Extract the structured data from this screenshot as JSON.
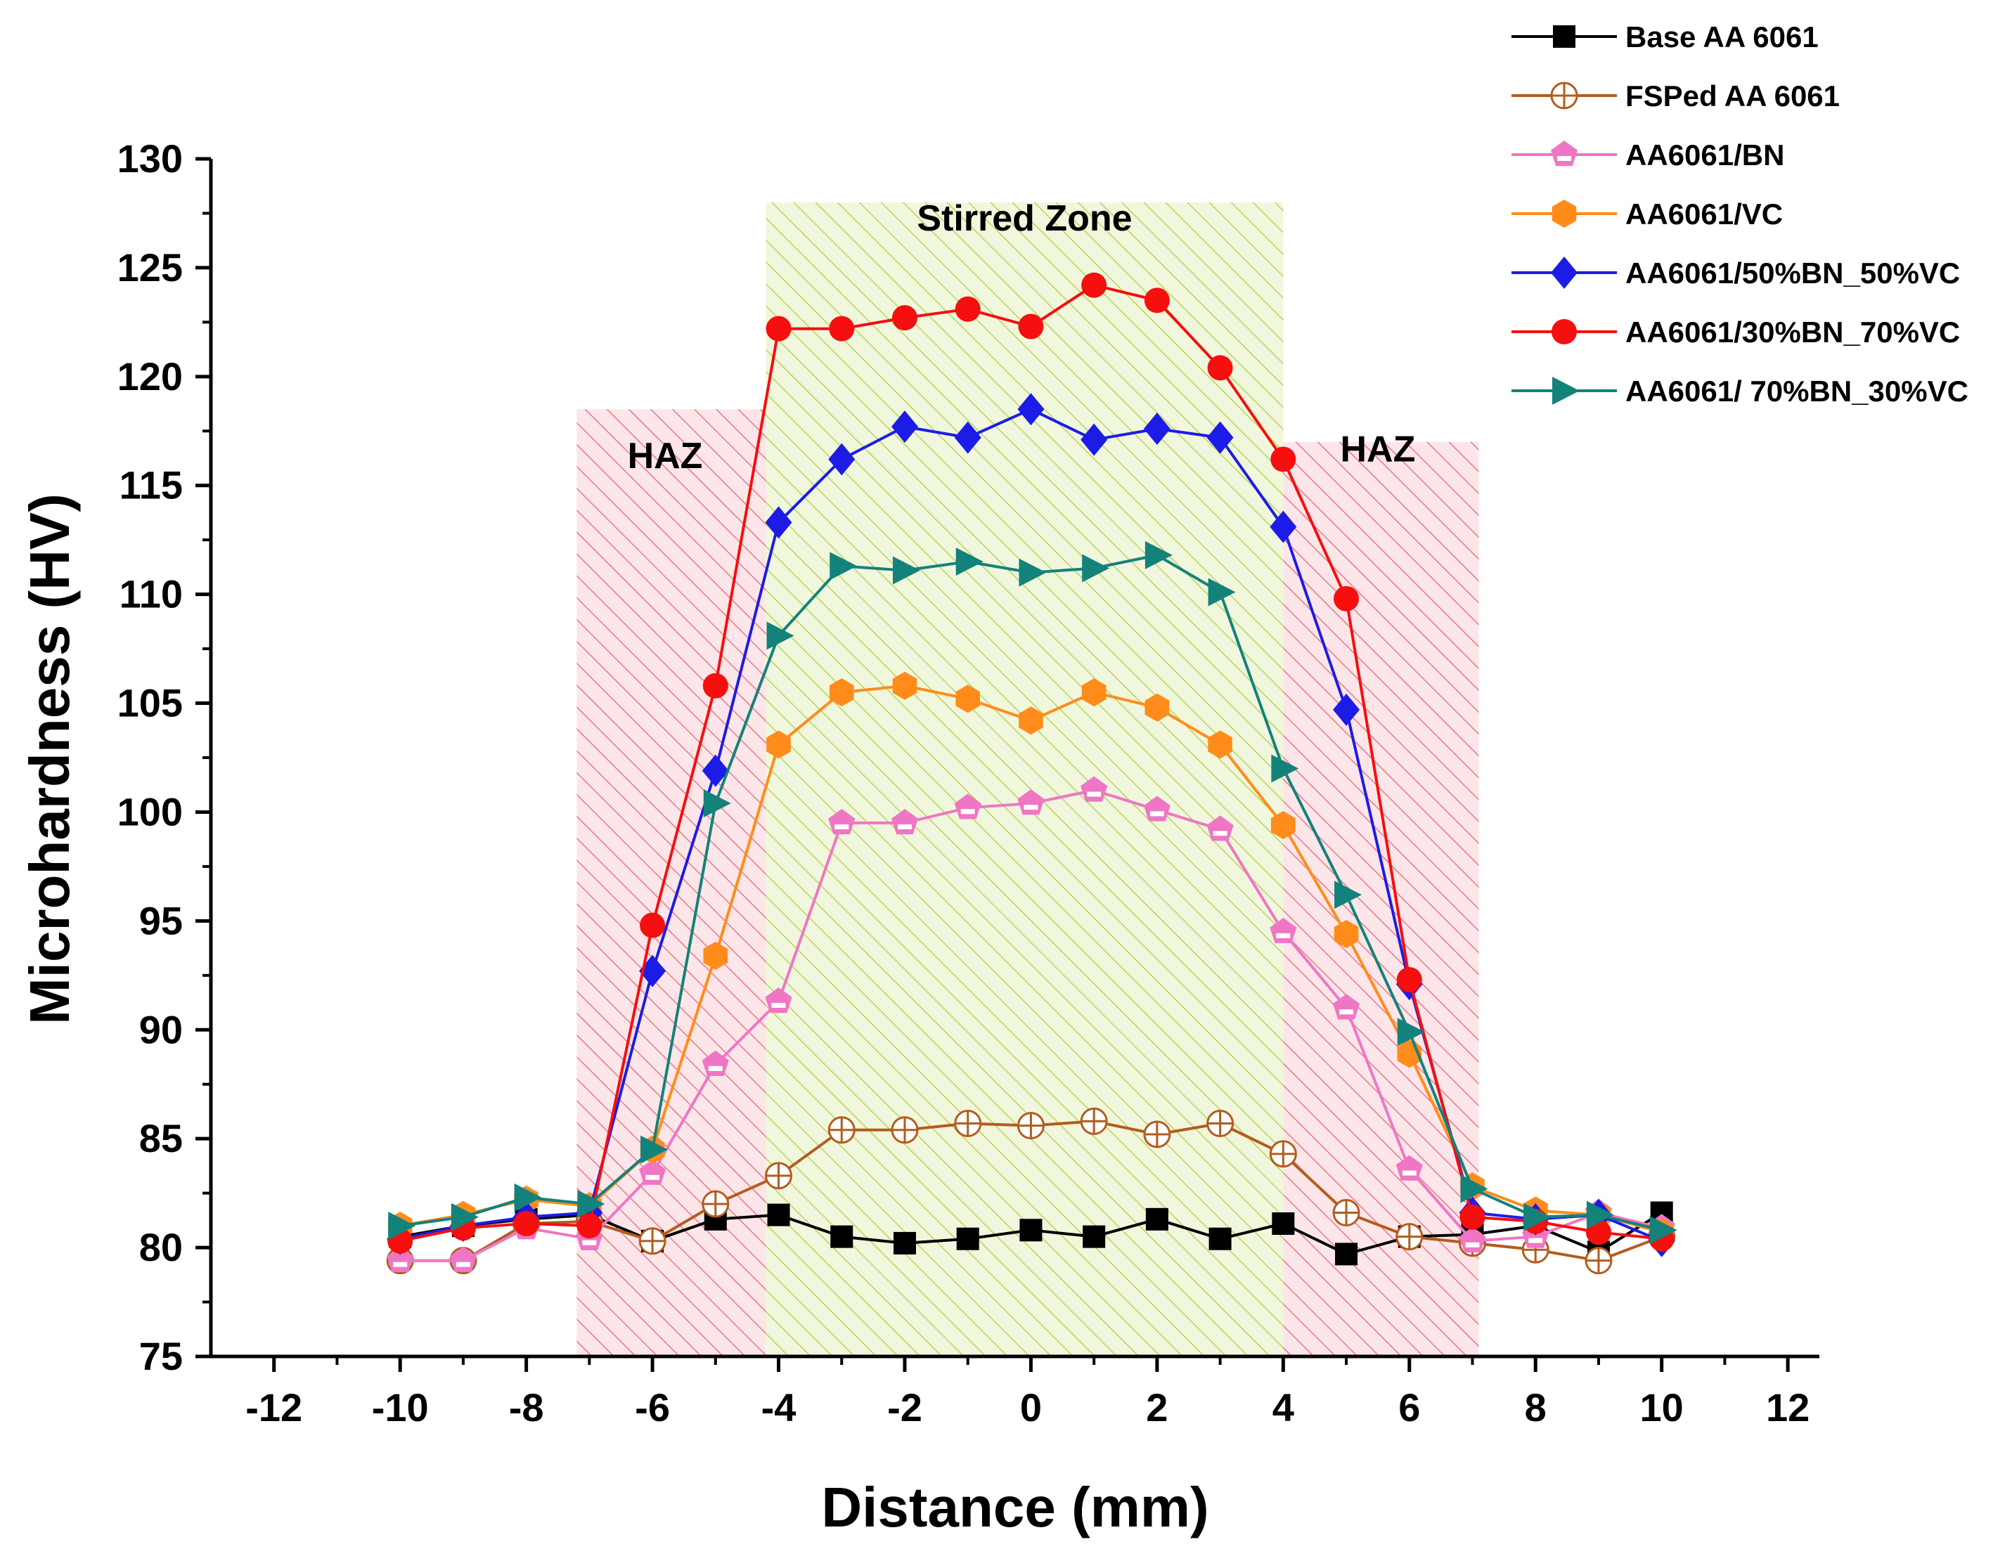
{
  "chart_data": {
    "type": "line",
    "title": "",
    "xlabel": "Distance (mm)",
    "ylabel": "Microhardness (HV)",
    "xlim": [
      -13,
      12.5
    ],
    "ylim": [
      75,
      130
    ],
    "xticks": [
      -12,
      -10,
      -8,
      -6,
      -4,
      -2,
      0,
      2,
      4,
      6,
      8,
      10,
      12
    ],
    "yticks": [
      75,
      80,
      85,
      90,
      95,
      100,
      105,
      110,
      115,
      120,
      125,
      130
    ],
    "grid": false,
    "legend_position": "top-right",
    "zones": [
      {
        "name": "haz-left",
        "label": "HAZ",
        "x_range": [
          -7.2,
          -4.2
        ],
        "y_range": [
          75,
          118.5
        ],
        "color": "#e87a87"
      },
      {
        "name": "stirred-zone",
        "label": "Stirred Zone",
        "x_range": [
          -4.2,
          4.0
        ],
        "y_range": [
          75,
          128
        ],
        "color": "#b7d45e"
      },
      {
        "name": "haz-right",
        "label": "HAZ",
        "x_range": [
          4.0,
          7.1
        ],
        "y_range": [
          75,
          117
        ],
        "color": "#e87a87"
      }
    ],
    "x": [
      -10,
      -9,
      -8,
      -7,
      -6,
      -5,
      -4,
      -3,
      -2,
      -1,
      0,
      1,
      2,
      3,
      4,
      5,
      6,
      7,
      8,
      9,
      10
    ],
    "series": [
      {
        "name": "Base AA 6061",
        "color": "#000000",
        "marker": "square",
        "values": [
          80.5,
          81.0,
          81.3,
          81.5,
          80.3,
          81.3,
          81.5,
          80.5,
          80.2,
          80.4,
          80.8,
          80.5,
          81.3,
          80.4,
          81.1,
          79.7,
          80.5,
          80.6,
          81.0,
          79.8,
          81.6
        ]
      },
      {
        "name": "FSPed AA 6061",
        "color": "#b35c1e",
        "marker": "circle-cross",
        "values": [
          79.4,
          79.4,
          81.1,
          81.2,
          80.3,
          82.0,
          83.3,
          85.4,
          85.4,
          85.7,
          85.6,
          85.8,
          85.2,
          85.7,
          84.3,
          81.6,
          80.5,
          80.2,
          79.9,
          79.4,
          80.5
        ]
      },
      {
        "name": "AA6061/BN",
        "color": "#ef76c4",
        "marker": "pentagon",
        "values": [
          79.4,
          79.4,
          80.9,
          80.4,
          83.4,
          88.4,
          91.3,
          99.5,
          99.5,
          100.2,
          100.4,
          101.0,
          100.1,
          99.2,
          94.5,
          91.0,
          83.6,
          80.3,
          80.5,
          81.6,
          80.9
        ]
      },
      {
        "name": "AA6061/VC",
        "color": "#ff8c1a",
        "marker": "hexagon",
        "values": [
          81.0,
          81.5,
          82.2,
          81.9,
          84.5,
          93.4,
          103.1,
          105.5,
          105.8,
          105.2,
          104.2,
          105.5,
          104.8,
          103.1,
          99.4,
          94.4,
          88.9,
          82.8,
          81.7,
          81.5,
          80.7
        ]
      },
      {
        "name": "AA6061/50%BN_50%VC",
        "color": "#1c1ce6",
        "marker": "diamond",
        "values": [
          80.4,
          81.0,
          81.4,
          81.6,
          92.7,
          101.9,
          113.3,
          116.2,
          117.7,
          117.2,
          118.5,
          117.1,
          117.6,
          117.2,
          113.1,
          104.7,
          92.1,
          81.6,
          81.3,
          81.5,
          80.3
        ]
      },
      {
        "name": "AA6061/30%BN_70%VC",
        "color": "#f50f0f",
        "marker": "circle",
        "values": [
          80.3,
          80.9,
          81.1,
          81.0,
          94.8,
          105.8,
          122.2,
          122.2,
          122.7,
          123.1,
          122.3,
          124.2,
          123.5,
          120.4,
          116.2,
          109.8,
          92.3,
          81.4,
          81.2,
          80.7,
          80.4
        ]
      },
      {
        "name": "AA6061/ 70%BN_30%VC",
        "color": "#13827a",
        "marker": "triangle-right",
        "values": [
          81.0,
          81.4,
          82.3,
          82.0,
          84.5,
          100.4,
          108.1,
          111.3,
          111.1,
          111.5,
          111.0,
          111.2,
          111.8,
          110.1,
          102.0,
          96.2,
          89.9,
          82.7,
          81.4,
          81.5,
          80.8
        ]
      }
    ]
  }
}
